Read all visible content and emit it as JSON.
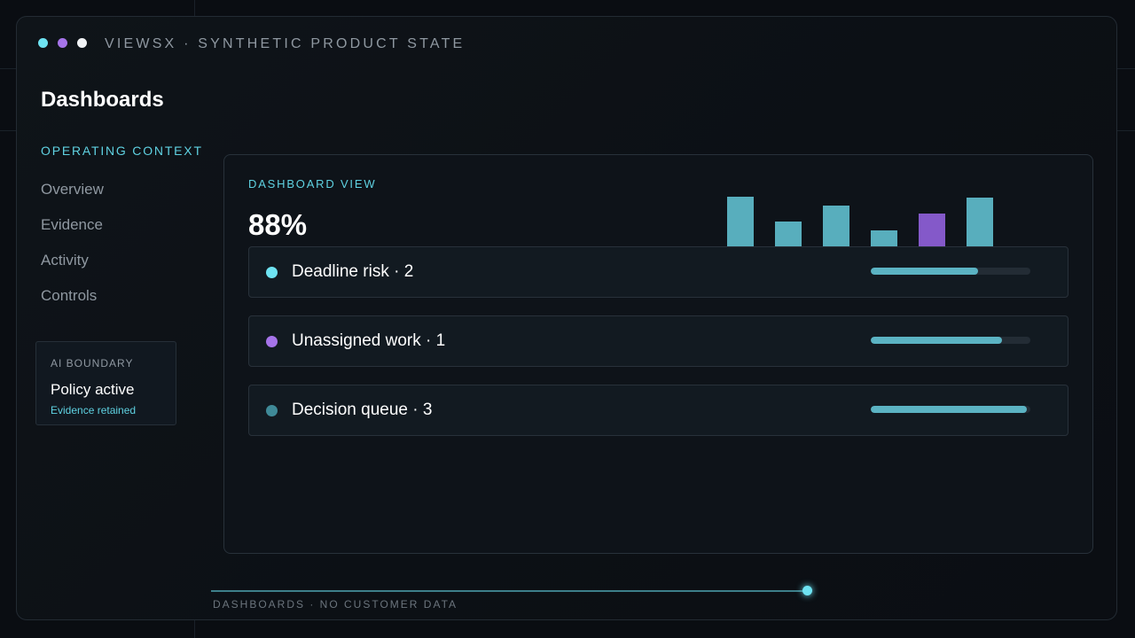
{
  "window": {
    "title": "VIEWSX · SYNTHETIC PRODUCT STATE",
    "dot_colors": [
      "#6ee3f2",
      "#a674ea",
      "#f1f3f5"
    ]
  },
  "page_title": "Dashboards",
  "sidebar": {
    "section_label": "OPERATING CONTEXT",
    "items": [
      {
        "label": "Overview"
      },
      {
        "label": "Evidence"
      },
      {
        "label": "Activity"
      },
      {
        "label": "Controls"
      }
    ]
  },
  "ai_boundary": {
    "label": "AI BOUNDARY",
    "status": "Policy active",
    "sub": "Evidence retained"
  },
  "panel": {
    "label": "DASHBOARD VIEW",
    "metric": "88%"
  },
  "chart_data": {
    "type": "bar",
    "bars": [
      {
        "value": 58,
        "color": "#58aebd"
      },
      {
        "value": 29,
        "color": "#58aebd"
      },
      {
        "value": 48,
        "color": "#58aebd"
      },
      {
        "value": 19,
        "color": "#58aebd"
      },
      {
        "value": 38,
        "color": "#8459c9"
      },
      {
        "value": 57,
        "color": "#58aebd"
      }
    ],
    "ylim": [
      0,
      60
    ]
  },
  "rows": [
    {
      "label": "Deadline risk · 2",
      "dot_color": "#6ee3f2",
      "progress": 0.67
    },
    {
      "label": "Unassigned work · 1",
      "dot_color": "#a674ea",
      "progress": 0.82
    },
    {
      "label": "Decision queue · 3",
      "dot_color": "#3f8a98",
      "progress": 0.98
    }
  ],
  "footer": {
    "label": "DASHBOARDS · NO CUSTOMER DATA",
    "progress": 1.0
  }
}
